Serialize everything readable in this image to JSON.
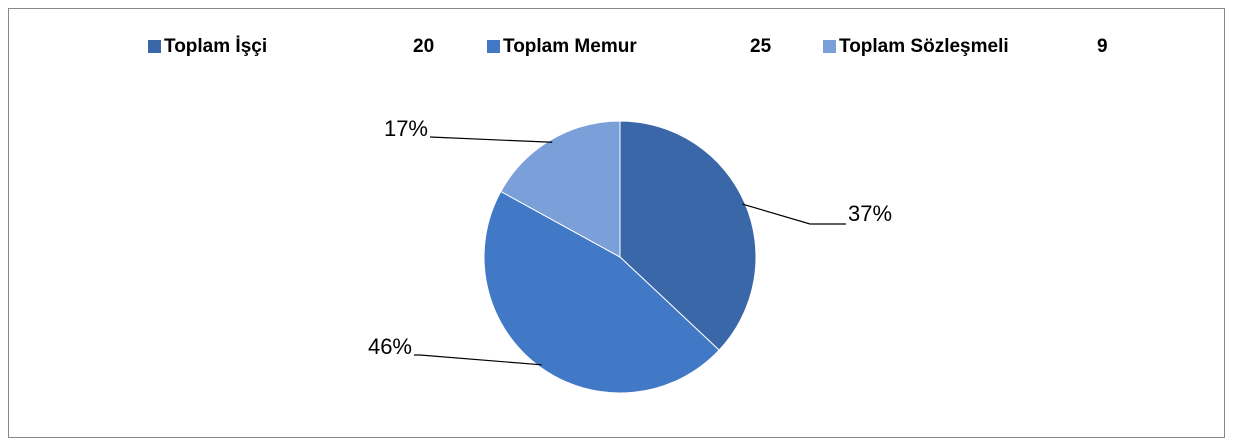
{
  "chart_data": {
    "type": "pie",
    "categories": [
      "Toplam İşçi",
      "Toplam Memur",
      "Toplam Sözleşmeli"
    ],
    "counts": [
      20,
      25,
      9
    ],
    "values": [
      37,
      46,
      17
    ],
    "value_labels": [
      "37%",
      "46%",
      "17%"
    ],
    "colors": [
      "#3a67a8",
      "#4279c6",
      "#7b9fd9"
    ],
    "legend": "top"
  }
}
